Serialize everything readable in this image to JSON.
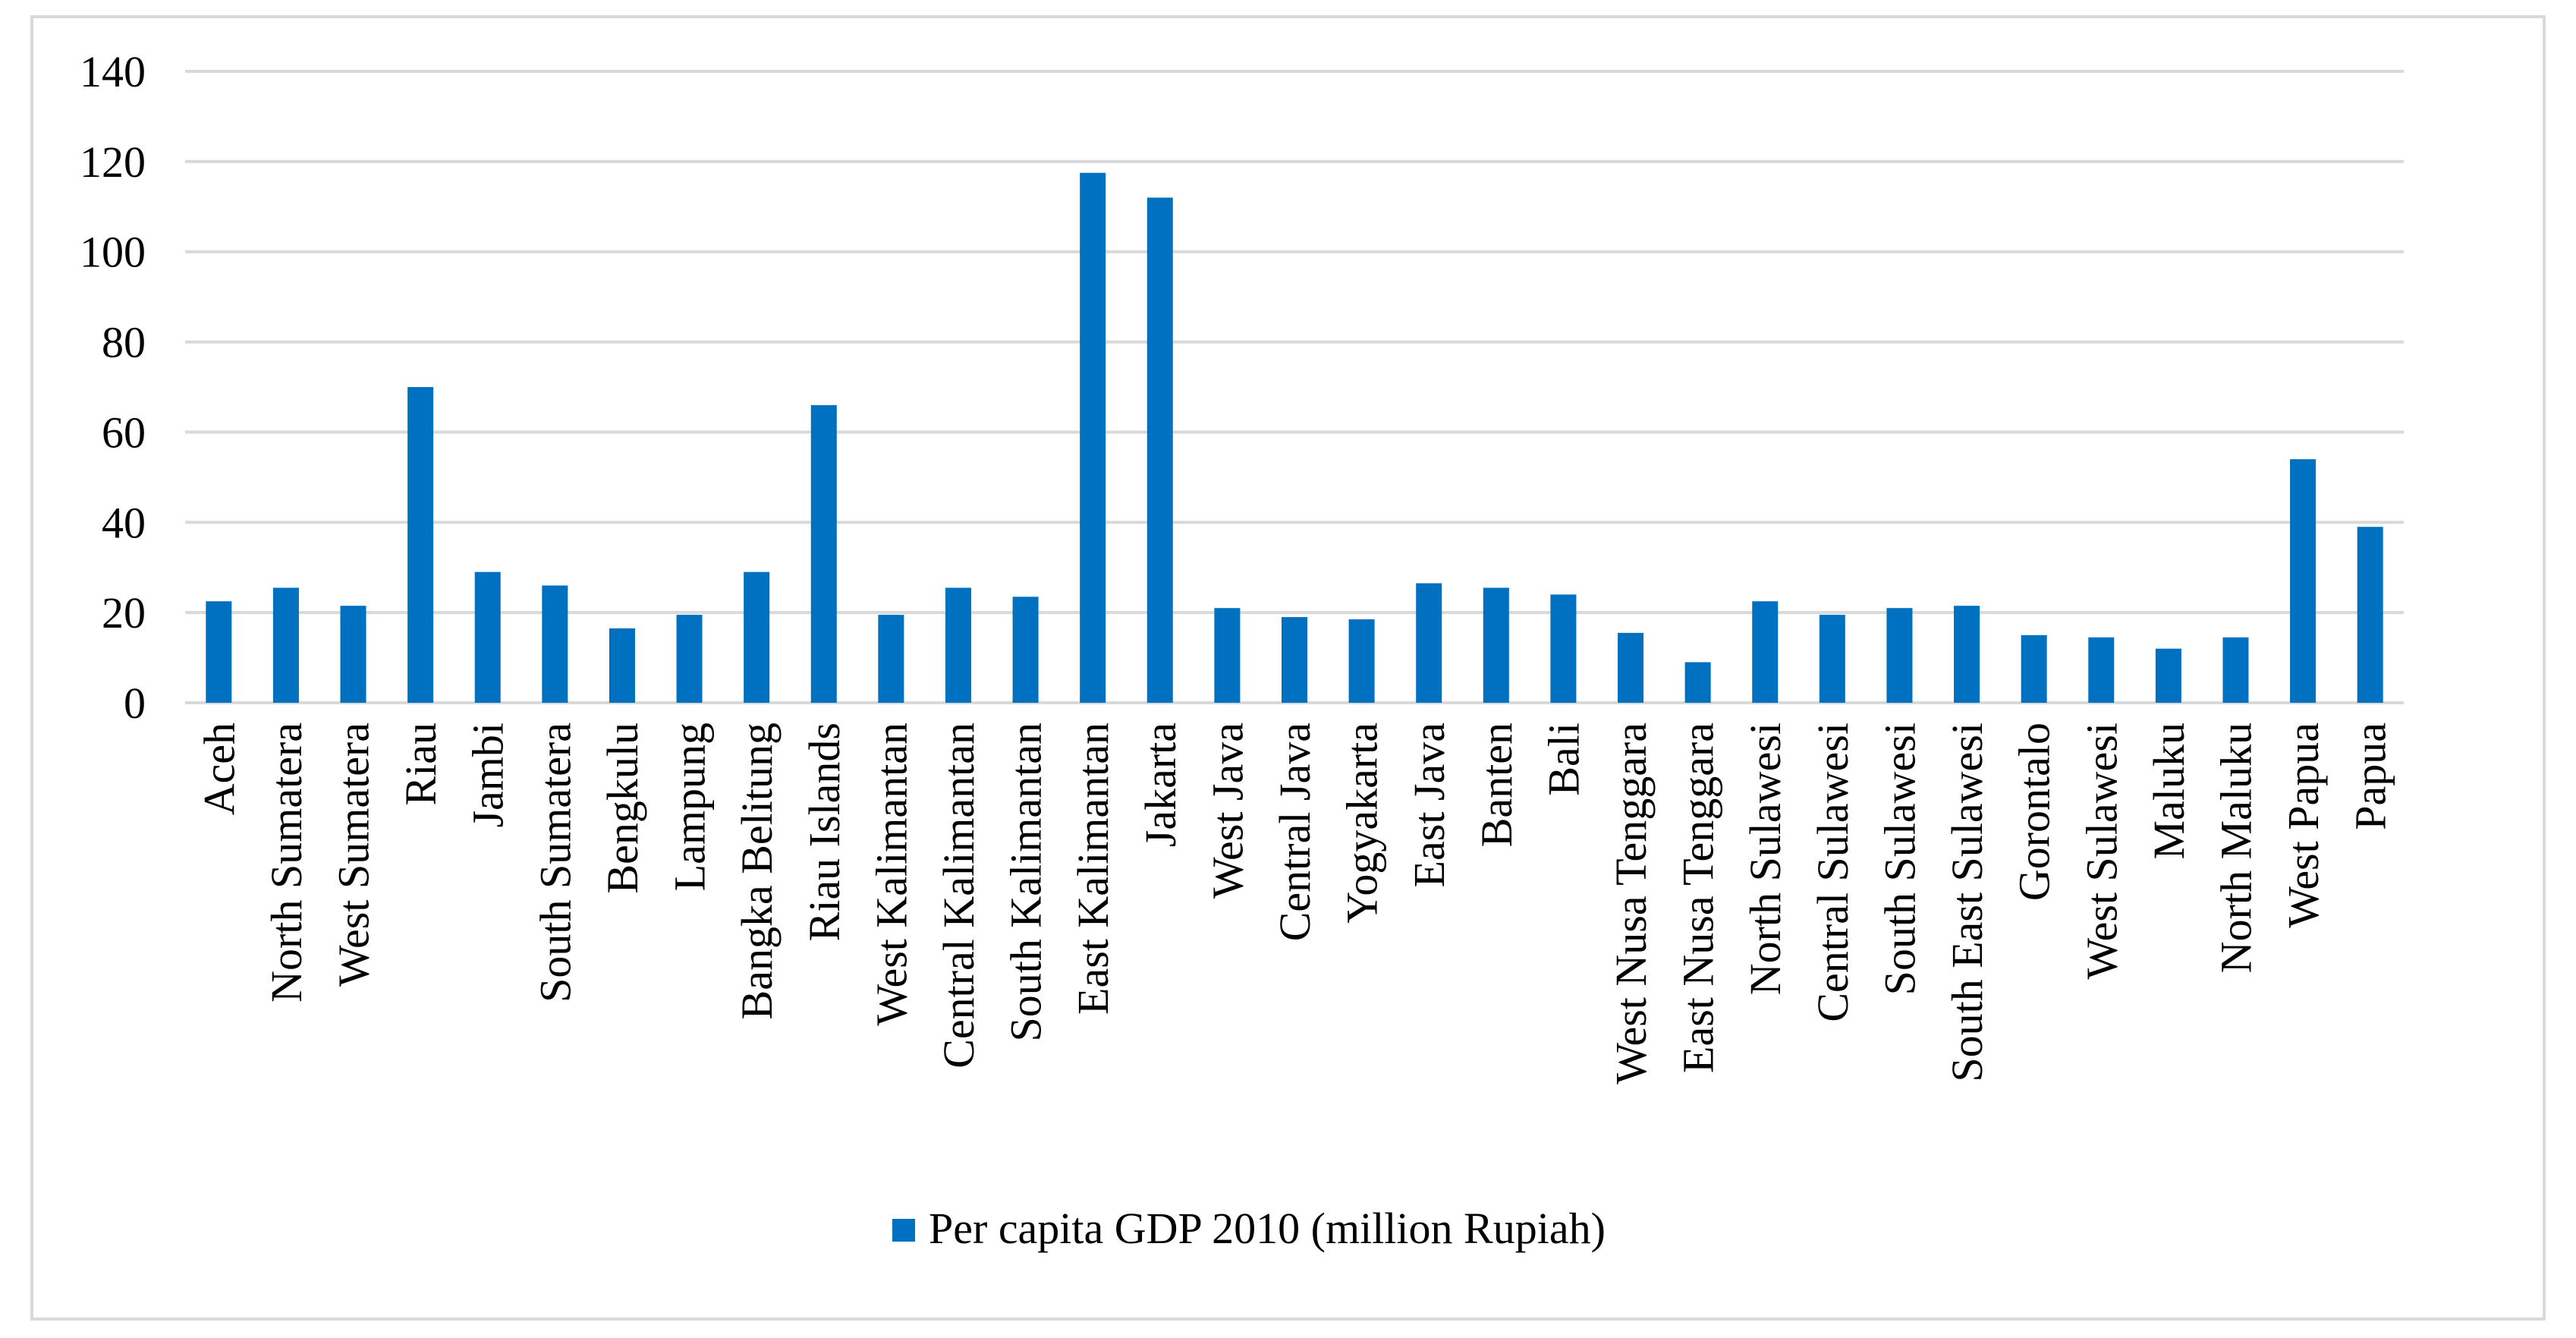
{
  "chart_data": {
    "type": "bar",
    "title": "",
    "xlabel": "",
    "ylabel": "",
    "ylim": [
      0,
      140
    ],
    "yticks": [
      "0",
      "20",
      "40",
      "60",
      "80",
      "100",
      "120",
      "140"
    ],
    "grid": true,
    "legend_position": "bottom",
    "categories": [
      "Aceh",
      "North Sumatera",
      "West Sumatera",
      "Riau",
      "Jambi",
      "South Sumatera",
      "Bengkulu",
      "Lampung",
      "Bangka Belitung",
      "Riau Islands",
      "West Kalimantan",
      "Central Kalimantan",
      "South Kalimantan",
      "East Kalimantan",
      "Jakarta",
      "West Java",
      "Central Java",
      "Yogyakarta",
      "East Java",
      "Banten",
      "Bali",
      "West Nusa Tenggara",
      "East Nusa Tenggara",
      "North Sulawesi",
      "Central Sulawesi",
      "South Sulawesi",
      "South East Sulawesi",
      "Gorontalo",
      "West Sulawesi",
      "Maluku",
      "North Maluku",
      "West Papua",
      "Papua"
    ],
    "series": [
      {
        "name": "Per capita GDP 2010 (million Rupiah)",
        "color": "#0070c0",
        "values": [
          22.5,
          25.5,
          21.5,
          70,
          29,
          26,
          16.5,
          19.5,
          29,
          66,
          19.5,
          25.5,
          23.5,
          117.5,
          112,
          21,
          19,
          18.5,
          26.5,
          25.5,
          24,
          15.5,
          9,
          22.5,
          19.5,
          21,
          21.5,
          15,
          14.5,
          12,
          14.5,
          54,
          39
        ]
      }
    ]
  }
}
